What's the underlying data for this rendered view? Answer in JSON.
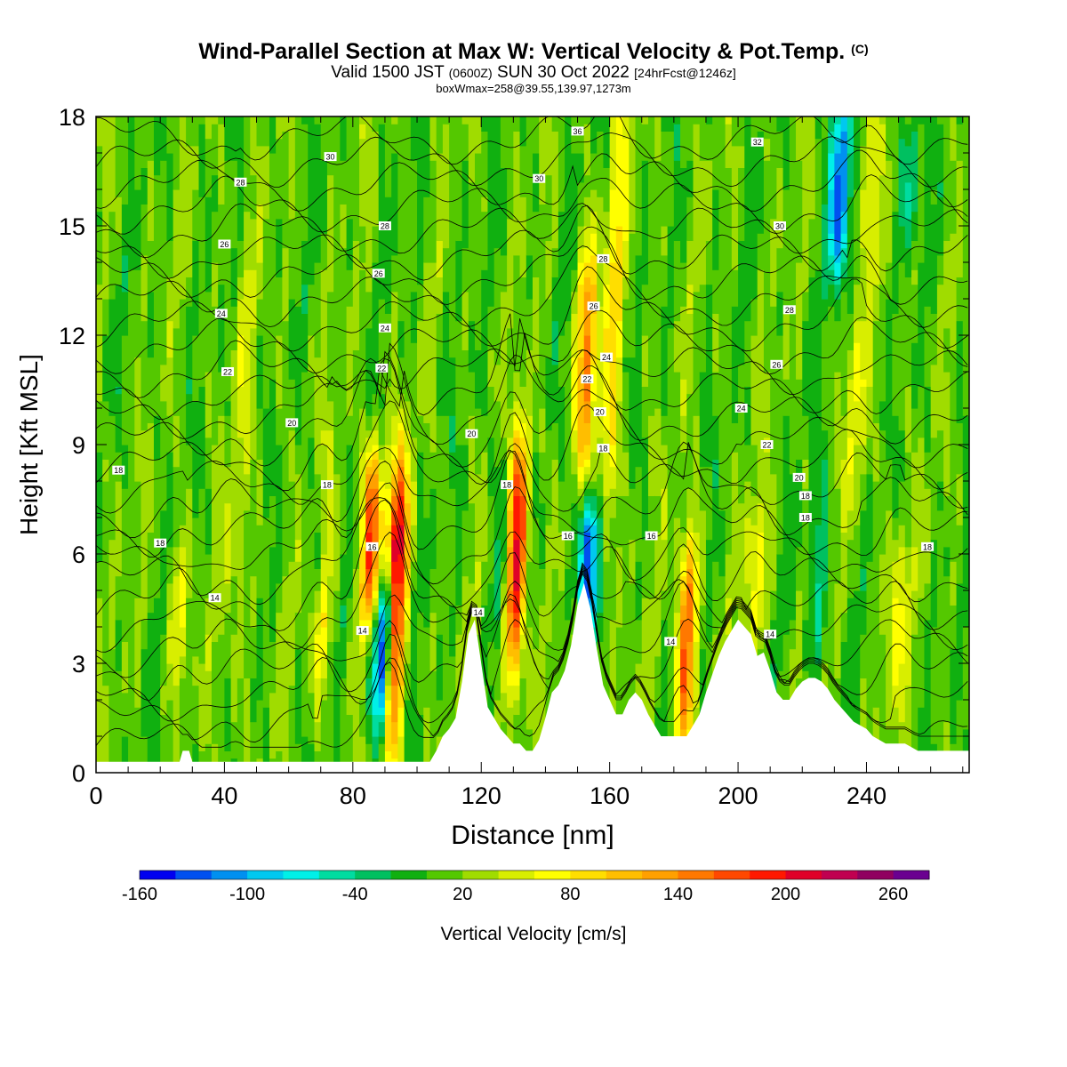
{
  "header": {
    "title_main": "Wind-Parallel Section at Max W: Vertical Velocity & Pot.Temp.",
    "title_mark": "(C)",
    "valid_prefix": "Valid 1500 JST",
    "valid_utc": "(0600Z)",
    "valid_date": "SUN 30 Oct 2022",
    "forecast": "[24hrFcst@1246z]",
    "boxw": "boxWmax=258@39.55,139.97,1273m"
  },
  "chart_data": {
    "type": "heatmap",
    "title": "Wind-Parallel Section at Max W: Vertical Velocity & Pot.Temp.",
    "xlabel": "Distance [nm]",
    "ylabel": "Height [Kft MSL]",
    "xlim": [
      0,
      272
    ],
    "ylim": [
      0,
      18
    ],
    "x_ticks": [
      0,
      40,
      80,
      120,
      160,
      200,
      240
    ],
    "y_ticks": [
      0,
      3,
      6,
      9,
      12,
      15,
      18
    ],
    "colorbar": {
      "label": "Vertical Velocity [cm/s]",
      "min": -160,
      "max": 280,
      "step": 20,
      "tick_labels": [
        -160,
        -100,
        -40,
        20,
        80,
        140,
        200,
        260
      ],
      "colors": [
        "#0000f0",
        "#0050f0",
        "#0090f0",
        "#00c8f0",
        "#00f0e8",
        "#00dca0",
        "#00c060",
        "#10b010",
        "#54c800",
        "#a0dc00",
        "#d8ee00",
        "#ffff00",
        "#ffde00",
        "#ffbe00",
        "#ffa000",
        "#ff7800",
        "#ff4800",
        "#ff1800",
        "#e00028",
        "#c00050",
        "#900060",
        "#6a0090"
      ]
    },
    "background_value": 10,
    "updrafts": [
      {
        "x": 25,
        "zmin": 3,
        "zmax": 6,
        "w": 50
      },
      {
        "x": 42,
        "zmin": 0.5,
        "zmax": 15,
        "w": 30
      },
      {
        "x": 70,
        "zmin": 2.5,
        "zmax": 8.5,
        "w": 70
      },
      {
        "x": 85,
        "zmin": 4.5,
        "zmax": 8.5,
        "w": 160
      },
      {
        "x": 92,
        "zmin": 1,
        "zmax": 8,
        "w": 230
      },
      {
        "x": 130,
        "zmin": 3,
        "zmax": 9,
        "w": 200
      },
      {
        "x": 152,
        "zmin": 9,
        "zmax": 14,
        "w": 130
      },
      {
        "x": 159,
        "zmin": 6,
        "zmax": 18,
        "w": 70
      },
      {
        "x": 183,
        "zmin": 1,
        "zmax": 6,
        "w": 150
      },
      {
        "x": 205,
        "zmin": 4,
        "zmax": 7,
        "w": 60
      },
      {
        "x": 236,
        "zmin": 8,
        "zmax": 12,
        "w": 50
      },
      {
        "x": 249,
        "zmin": 2.5,
        "zmax": 6,
        "w": 60
      },
      {
        "x": 240,
        "zmin": 14,
        "zmax": 18,
        "w": 50
      }
    ],
    "downdrafts": [
      {
        "x": 70,
        "zmin": 5,
        "zmax": 8,
        "w": -50
      },
      {
        "x": 88,
        "zmin": 0.8,
        "zmax": 4.5,
        "w": -60
      },
      {
        "x": 90,
        "zmin": 2,
        "zmax": 5,
        "w": -160
      },
      {
        "x": 126,
        "zmin": 4,
        "zmax": 9,
        "w": -40
      },
      {
        "x": 153,
        "zmin": 4.5,
        "zmax": 7,
        "w": -160
      },
      {
        "x": 224,
        "zmin": 3,
        "zmax": 8,
        "w": -50
      },
      {
        "x": 231,
        "zmin": 14,
        "zmax": 18,
        "w": -140
      },
      {
        "x": 253,
        "zmin": 15,
        "zmax": 18,
        "w": -50
      }
    ],
    "terrain": {
      "x": [
        0,
        26,
        27,
        29,
        30,
        104,
        106,
        108,
        110,
        112,
        114,
        116,
        118,
        120,
        122,
        124,
        126,
        128,
        130,
        132,
        134,
        136,
        138,
        140,
        142,
        144,
        146,
        148,
        150,
        152,
        154,
        156,
        158,
        160,
        162,
        164,
        166,
        168,
        170,
        172,
        174,
        176,
        178,
        180,
        182,
        184,
        186,
        188,
        190,
        192,
        194,
        196,
        198,
        200,
        202,
        204,
        206,
        208,
        210,
        212,
        214,
        216,
        218,
        220,
        222,
        224,
        226,
        228,
        230,
        232,
        234,
        236,
        238,
        240,
        242,
        244,
        246,
        248,
        250,
        252,
        254,
        256,
        258,
        260,
        262,
        264,
        266,
        268,
        270,
        272
      ],
      "z": [
        0.3,
        0.3,
        0.6,
        0.6,
        0.3,
        0.3,
        0.6,
        1.0,
        1.2,
        1.5,
        2.5,
        3.8,
        4.2,
        3.0,
        1.8,
        1.5,
        1.2,
        1.0,
        0.8,
        0.8,
        0.6,
        0.6,
        0.9,
        1.5,
        2.2,
        2.4,
        2.8,
        3.5,
        4.6,
        5.2,
        4.5,
        3.4,
        2.4,
        2.0,
        1.6,
        1.6,
        2.0,
        2.2,
        2.0,
        1.6,
        1.3,
        1.0,
        1.0,
        1.0,
        1.0,
        1.0,
        1.3,
        1.6,
        2.2,
        2.7,
        3.2,
        3.6,
        3.9,
        4.2,
        4.0,
        3.8,
        3.2,
        3.3,
        2.8,
        2.2,
        2.0,
        2.0,
        2.3,
        2.5,
        2.6,
        2.6,
        2.5,
        2.3,
        2.0,
        1.8,
        1.6,
        1.4,
        1.3,
        1.2,
        1.0,
        0.9,
        0.8,
        0.8,
        0.8,
        0.8,
        0.7,
        0.6,
        0.6,
        0.6,
        0.6,
        0.6,
        0.6,
        0.6,
        0.6,
        0.6
      ]
    },
    "theta_contours": {
      "levels": [
        11,
        12,
        13,
        14,
        15,
        16,
        17,
        18,
        19,
        20,
        21,
        22,
        23,
        24,
        25,
        26,
        27,
        28,
        29,
        30,
        31,
        32,
        33,
        34,
        35,
        36,
        37
      ],
      "labels": [
        {
          "text": "18",
          "x": 7,
          "z": 8.3
        },
        {
          "text": "18",
          "x": 20,
          "z": 6.3
        },
        {
          "text": "14",
          "x": 37,
          "z": 4.8
        },
        {
          "text": "22",
          "x": 41,
          "z": 11.0
        },
        {
          "text": "24",
          "x": 39,
          "z": 12.6
        },
        {
          "text": "26",
          "x": 40,
          "z": 14.5
        },
        {
          "text": "28",
          "x": 45,
          "z": 16.2
        },
        {
          "text": "30",
          "x": 73,
          "z": 16.9
        },
        {
          "text": "20",
          "x": 61,
          "z": 9.6
        },
        {
          "text": "18",
          "x": 72,
          "z": 7.9
        },
        {
          "text": "14",
          "x": 83,
          "z": 3.9
        },
        {
          "text": "16",
          "x": 86,
          "z": 6.2
        },
        {
          "text": "22",
          "x": 89,
          "z": 11.1
        },
        {
          "text": "24",
          "x": 90,
          "z": 12.2
        },
        {
          "text": "26",
          "x": 88,
          "z": 13.7
        },
        {
          "text": "28",
          "x": 90,
          "z": 15.0
        },
        {
          "text": "30",
          "x": 138,
          "z": 16.3
        },
        {
          "text": "20",
          "x": 117,
          "z": 9.3
        },
        {
          "text": "14",
          "x": 119,
          "z": 4.4
        },
        {
          "text": "18",
          "x": 128,
          "z": 7.9
        },
        {
          "text": "16",
          "x": 147,
          "z": 6.5
        },
        {
          "text": "18",
          "x": 158,
          "z": 8.9
        },
        {
          "text": "20",
          "x": 157,
          "z": 9.9
        },
        {
          "text": "22",
          "x": 153,
          "z": 10.8
        },
        {
          "text": "24",
          "x": 159,
          "z": 11.4
        },
        {
          "text": "26",
          "x": 155,
          "z": 12.8
        },
        {
          "text": "28",
          "x": 158,
          "z": 14.1
        },
        {
          "text": "36",
          "x": 150,
          "z": 17.6
        },
        {
          "text": "16",
          "x": 173,
          "z": 6.5
        },
        {
          "text": "14",
          "x": 179,
          "z": 3.6
        },
        {
          "text": "14",
          "x": 210,
          "z": 3.8
        },
        {
          "text": "24",
          "x": 201,
          "z": 10.0
        },
        {
          "text": "22",
          "x": 209,
          "z": 9.0
        },
        {
          "text": "26",
          "x": 212,
          "z": 11.2
        },
        {
          "text": "28",
          "x": 216,
          "z": 12.7
        },
        {
          "text": "30",
          "x": 213,
          "z": 15.0
        },
        {
          "text": "32",
          "x": 206,
          "z": 17.3
        },
        {
          "text": "20",
          "x": 219,
          "z": 8.1
        },
        {
          "text": "18",
          "x": 221,
          "z": 7.6
        },
        {
          "text": "18",
          "x": 221,
          "z": 7.0
        },
        {
          "text": "18",
          "x": 259,
          "z": 6.2
        }
      ]
    },
    "grid": false,
    "legend": "bottom colorbar"
  }
}
